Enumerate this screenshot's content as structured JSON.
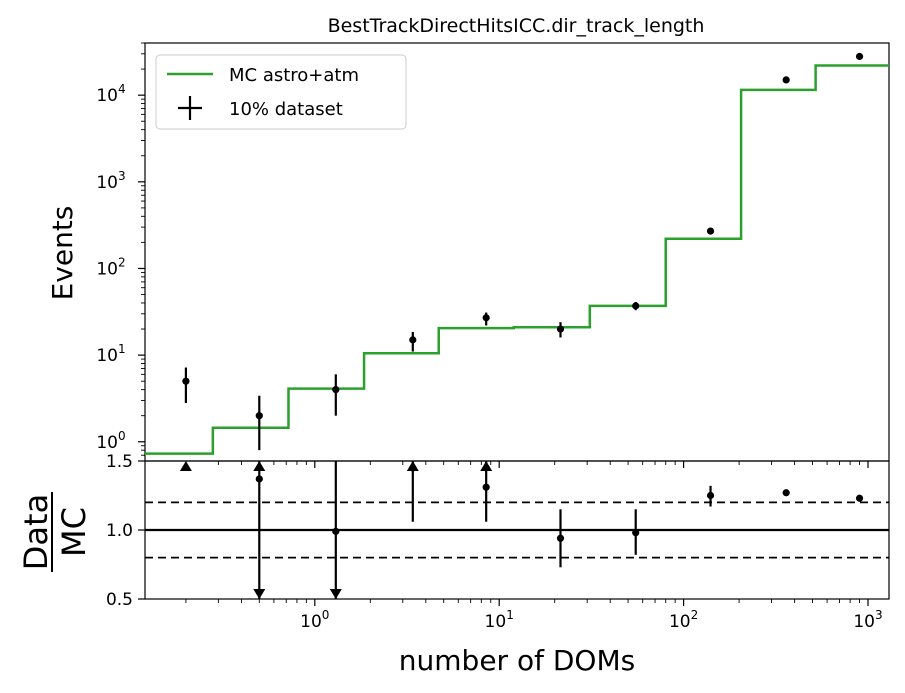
{
  "chart_data": [
    {
      "type": "line",
      "title": "BestTrackDirectHitsICC.dir_track_length",
      "xlabel": "",
      "ylabel": "Events",
      "xscale": "log",
      "yscale": "log",
      "xlim": [
        0.12,
        1300
      ],
      "ylim": [
        0.6,
        40000
      ],
      "x_ticks": [
        {
          "base": "10",
          "exp": "0",
          "value": 1
        },
        {
          "base": "10",
          "exp": "1",
          "value": 10
        },
        {
          "base": "10",
          "exp": "2",
          "value": 100
        },
        {
          "base": "10",
          "exp": "3",
          "value": 1000
        }
      ],
      "y_ticks": [
        {
          "base": "10",
          "exp": "0",
          "value": 1
        },
        {
          "base": "10",
          "exp": "1",
          "value": 10
        },
        {
          "base": "10",
          "exp": "2",
          "value": 100
        },
        {
          "base": "10",
          "exp": "3",
          "value": 1000
        },
        {
          "base": "10",
          "exp": "4",
          "value": 10000
        }
      ],
      "legend": {
        "position": "top-left",
        "entries": [
          {
            "label": "MC astro+atm",
            "color": "#2ca02c",
            "kind": "line"
          },
          {
            "label": "10% dataset",
            "color": "#000000",
            "kind": "errorbar"
          }
        ]
      },
      "series": [
        {
          "name": "MC astro+atm",
          "kind": "step",
          "color": "#2ca02c",
          "bin_edges": [
            0.12,
            0.28,
            0.72,
            1.85,
            4.7,
            12,
            31,
            80,
            205,
            520,
            1300
          ],
          "values": [
            0.73,
            1.45,
            4.1,
            10.5,
            20.5,
            21,
            37,
            220,
            11500,
            22000
          ]
        },
        {
          "name": "10% dataset",
          "kind": "errorbar",
          "color": "#000000",
          "x": [
            0.2,
            0.5,
            1.3,
            3.4,
            8.5,
            21.5,
            55,
            140,
            360,
            900
          ],
          "y": [
            5,
            2,
            4,
            15,
            27,
            20,
            37,
            270,
            15000,
            28000
          ],
          "y_low": [
            2.8,
            0.8,
            2.0,
            11,
            22,
            16,
            33,
            258,
            14700,
            27600
          ],
          "y_high": [
            7.2,
            3.4,
            6.0,
            18.5,
            31,
            24,
            41,
            283,
            15300,
            28400
          ]
        }
      ]
    },
    {
      "type": "scatter",
      "title": "",
      "xlabel": "number of DOMs",
      "ylabel": "Data / MC",
      "ylabel_num": "Data",
      "ylabel_den": "MC",
      "xscale": "log",
      "xlim": [
        0.12,
        1300
      ],
      "ylim": [
        0.5,
        1.5
      ],
      "x_ticks": [
        {
          "base": "10",
          "exp": "0",
          "value": 1
        },
        {
          "base": "10",
          "exp": "1",
          "value": 10
        },
        {
          "base": "10",
          "exp": "2",
          "value": 100
        },
        {
          "base": "10",
          "exp": "3",
          "value": 1000
        }
      ],
      "y_ticks": [
        {
          "label": "0.5",
          "value": 0.5
        },
        {
          "label": "1.0",
          "value": 1.0
        },
        {
          "label": "1.5",
          "value": 1.5
        }
      ],
      "reference_lines": [
        {
          "y": 1.0,
          "style": "solid"
        },
        {
          "y": 1.2,
          "style": "dashed"
        },
        {
          "y": 0.8,
          "style": "dashed"
        }
      ],
      "series": [
        {
          "name": "",
          "color": "#000000",
          "x": [
            0.2,
            0.5,
            1.3,
            3.4,
            8.5,
            21.5,
            55,
            140,
            360,
            900
          ],
          "y": [
            1.5,
            1.37,
            0.99,
            1.45,
            1.31,
            0.94,
            0.98,
            1.25,
            1.27,
            1.23
          ],
          "y_low": [
            1.5,
            0.5,
            0.5,
            1.06,
            1.06,
            0.73,
            0.82,
            1.17,
            1.27,
            1.21
          ],
          "y_high": [
            1.5,
            1.5,
            1.5,
            1.5,
            1.5,
            1.15,
            1.15,
            1.32,
            1.27,
            1.24
          ],
          "arrow_up": [
            true,
            true,
            false,
            true,
            true,
            false,
            false,
            false,
            false,
            false
          ],
          "arrow_down": [
            false,
            true,
            true,
            false,
            false,
            false,
            false,
            false,
            false,
            false
          ],
          "marker": [
            "arrow",
            "dot",
            "dot",
            "dot",
            "dot",
            "dot",
            "dot",
            "dot",
            "dot",
            "dot"
          ]
        }
      ]
    }
  ]
}
